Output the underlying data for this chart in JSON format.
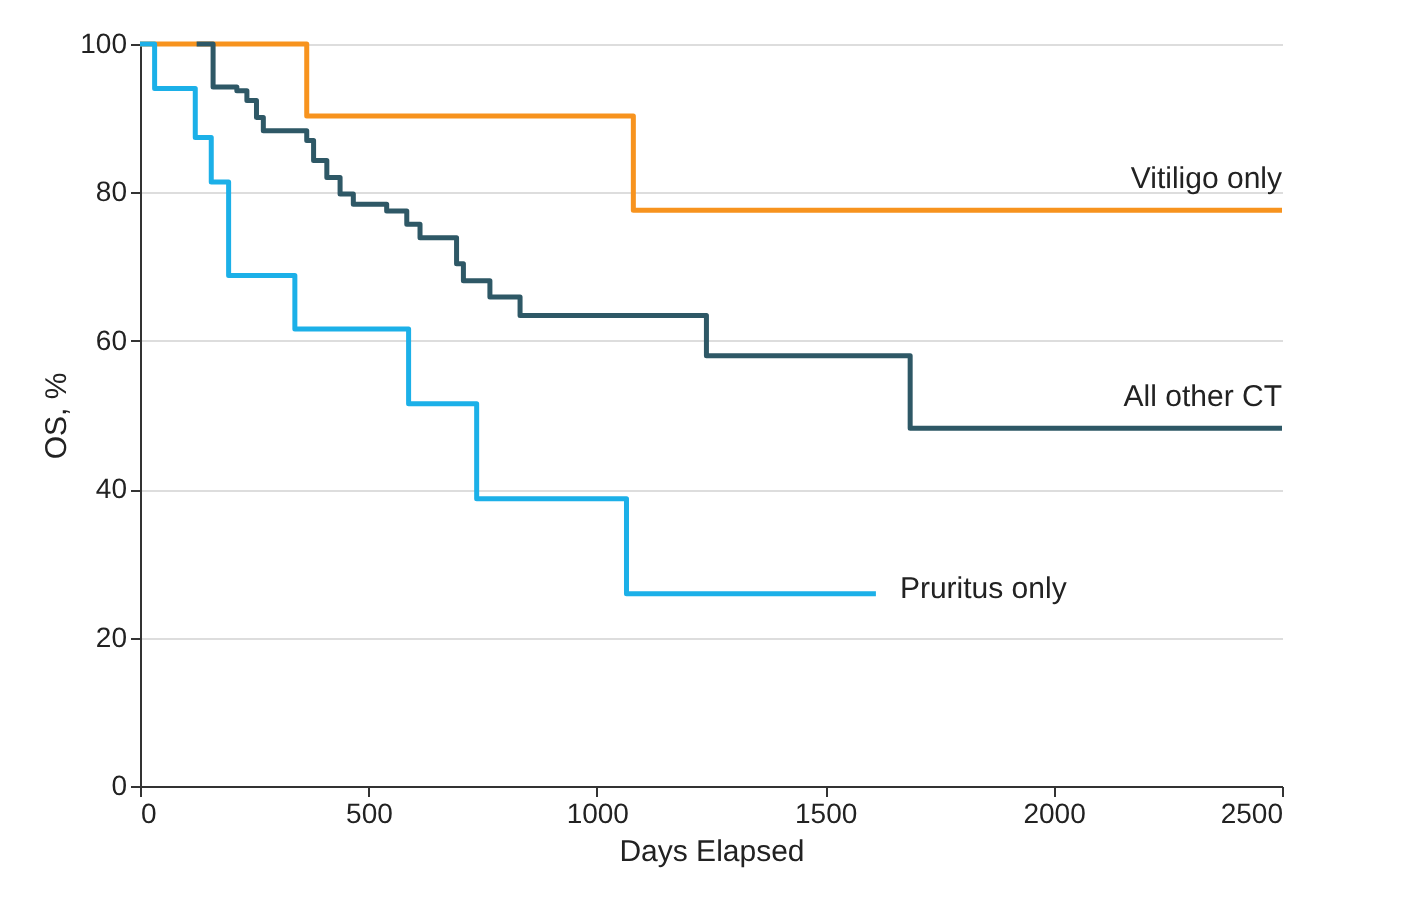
{
  "chart_data": {
    "type": "step",
    "xlabel": "Days Elapsed",
    "ylabel": "OS, %",
    "xlim": [
      0,
      2500
    ],
    "xticks": [
      0,
      500,
      1000,
      1500,
      2000,
      2500
    ],
    "ylim": [
      0,
      100
    ],
    "yticks": [
      0,
      20,
      40,
      60,
      80,
      100
    ],
    "grid": "y",
    "legend": false,
    "marker": "none",
    "line_style": "solid",
    "series": [
      {
        "name": "Vitiligo only",
        "color": "#f7931e",
        "x": [
          0,
          365,
          1080,
          2500
        ],
        "values": [
          100,
          90.3,
          77.6,
          77.6
        ]
      },
      {
        "name": "All other CT",
        "color": "#2e5866",
        "x": [
          124,
          160,
          212,
          234,
          255,
          270,
          365,
          380,
          409,
          438,
          467,
          540,
          584,
          613,
          693,
          708,
          766,
          832,
          1240,
          1686,
          2500
        ],
        "values": [
          100,
          94.2,
          93.7,
          92.4,
          90.1,
          88.3,
          87.0,
          84.3,
          82.0,
          79.8,
          78.4,
          77.5,
          75.7,
          73.9,
          70.4,
          68.1,
          65.9,
          63.4,
          58.0,
          48.2,
          48.2
        ]
      },
      {
        "name": "Pruritus only",
        "color": "#1cb0e8",
        "x": [
          0,
          32,
          121,
          156,
          194,
          339,
          588,
          737,
          1065,
          1611
        ],
        "values": [
          100,
          94.0,
          87.4,
          81.4,
          68.8,
          61.6,
          51.5,
          38.7,
          25.9,
          25.9
        ]
      }
    ]
  }
}
